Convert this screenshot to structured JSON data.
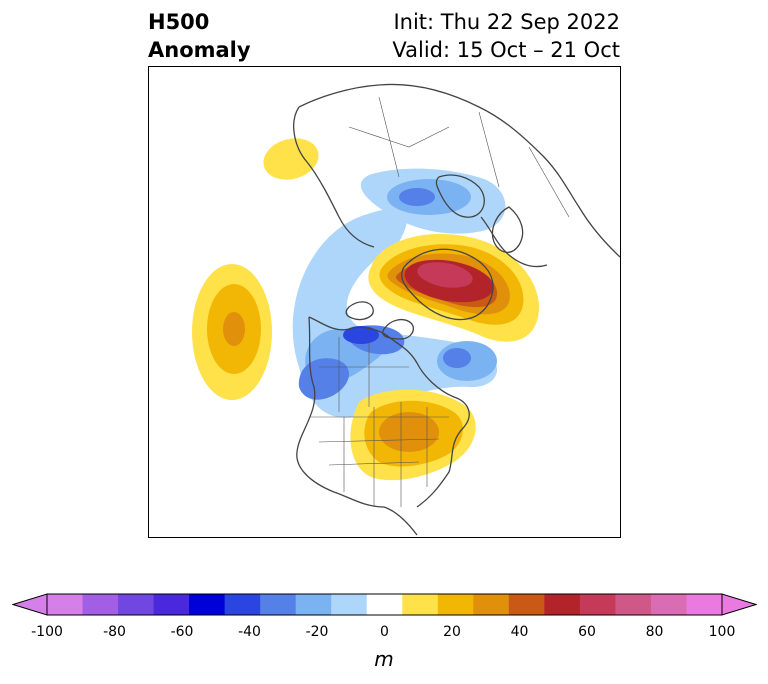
{
  "title": {
    "left_line1": "H500",
    "left_line2": "Anomaly",
    "right_line1": "Init: Thu 22 Sep 2022",
    "right_line2": "Valid: 15 Oct – 21 Oct"
  },
  "map": {
    "region": "North America / North Atlantic / Arctic (polar stereographic)",
    "features": [
      {
        "name": "positive-anomaly-north-atlantic-greenland",
        "sign": "positive",
        "peak_m": 70
      },
      {
        "name": "positive-anomaly-eastern-united-states",
        "sign": "positive",
        "peak_m": 40
      },
      {
        "name": "positive-anomaly-north-pacific",
        "sign": "positive",
        "peak_m": 40
      },
      {
        "name": "positive-anomaly-siberia",
        "sign": "positive",
        "peak_m": 10
      },
      {
        "name": "negative-anomaly-western-canada-alaska",
        "sign": "negative",
        "peak_m": -50
      },
      {
        "name": "negative-anomaly-northern-europe",
        "sign": "negative",
        "peak_m": -30
      },
      {
        "name": "negative-anomaly-central-atlantic",
        "sign": "negative",
        "peak_m": -30
      }
    ]
  },
  "colorbar": {
    "unit": "m",
    "ticks": [
      "-100",
      "-80",
      "-60",
      "-40",
      "-20",
      "0",
      "20",
      "40",
      "60",
      "80",
      "100"
    ],
    "colors": [
      "#d580e8",
      "#a35ee6",
      "#7047e0",
      "#4a28dc",
      "#0000d8",
      "#2a45e0",
      "#5580e8",
      "#7ab2f2",
      "#aed6fa",
      "#ffffff",
      "#ffe24a",
      "#f2b705",
      "#e0900a",
      "#c95a15",
      "#b2242a",
      "#c43a58",
      "#d05888",
      "#da6cb4",
      "#ea7ae0"
    ],
    "extend_min_color": "#d580e8",
    "extend_max_color": "#ea7ae0"
  }
}
